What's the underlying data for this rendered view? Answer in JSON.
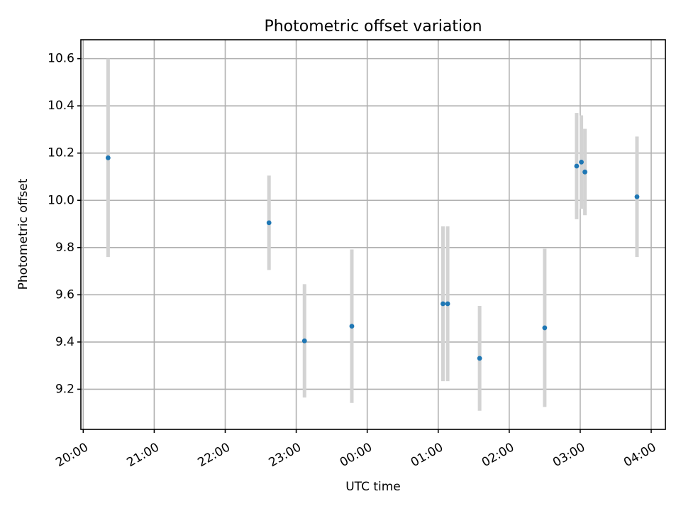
{
  "chart_data": {
    "type": "scatter",
    "title": "Photometric offset variation",
    "xlabel": "UTC time",
    "ylabel": "Photometric offset",
    "xlim": [
      "2023-01-01T19:58",
      "2023-01-02T04:12"
    ],
    "ylim": [
      9.03,
      10.68
    ],
    "x_ticks": [
      "2023-01-01T20:00",
      "2023-01-01T21:00",
      "2023-01-01T22:00",
      "2023-01-01T23:00",
      "2023-01-02T00:00",
      "2023-01-02T01:00",
      "2023-01-02T02:00",
      "2023-01-02T03:00",
      "2023-01-02T04:00"
    ],
    "x_tick_labels": [
      "20:00",
      "21:00",
      "22:00",
      "23:00",
      "00:00",
      "01:00",
      "02:00",
      "03:00",
      "04:00"
    ],
    "y_ticks": [
      9.2,
      9.4,
      9.6,
      9.8,
      10.0,
      10.2,
      10.4,
      10.6
    ],
    "y_tick_labels": [
      "9.2",
      "9.4",
      "9.6",
      "9.8",
      "10.0",
      "10.2",
      "10.4",
      "10.6"
    ],
    "grid": true,
    "colors": {
      "point": "#1f77b4",
      "error_bar": "#d3d3d3"
    },
    "points": [
      {
        "x": "2023-01-01T20:21",
        "y": 10.18,
        "yerr": 0.42
      },
      {
        "x": "2023-01-01T22:37",
        "y": 9.905,
        "yerr": 0.2
      },
      {
        "x": "2023-01-01T23:07",
        "y": 9.405,
        "yerr": 0.24
      },
      {
        "x": "2023-01-01T23:47",
        "y": 9.467,
        "yerr": 0.325
      },
      {
        "x": "2023-01-02T01:04",
        "y": 9.562,
        "yerr": 0.328
      },
      {
        "x": "2023-01-02T01:08",
        "y": 9.562,
        "yerr": 0.328
      },
      {
        "x": "2023-01-02T01:35",
        "y": 9.331,
        "yerr": 0.222
      },
      {
        "x": "2023-01-02T02:30",
        "y": 9.46,
        "yerr": 0.335
      },
      {
        "x": "2023-01-02T02:57",
        "y": 10.145,
        "yerr": 0.225
      },
      {
        "x": "2023-01-02T03:01",
        "y": 10.162,
        "yerr": 0.198
      },
      {
        "x": "2023-01-02T03:04",
        "y": 10.12,
        "yerr": 0.183
      },
      {
        "x": "2023-01-02T03:48",
        "y": 10.015,
        "yerr": 0.255
      }
    ]
  }
}
